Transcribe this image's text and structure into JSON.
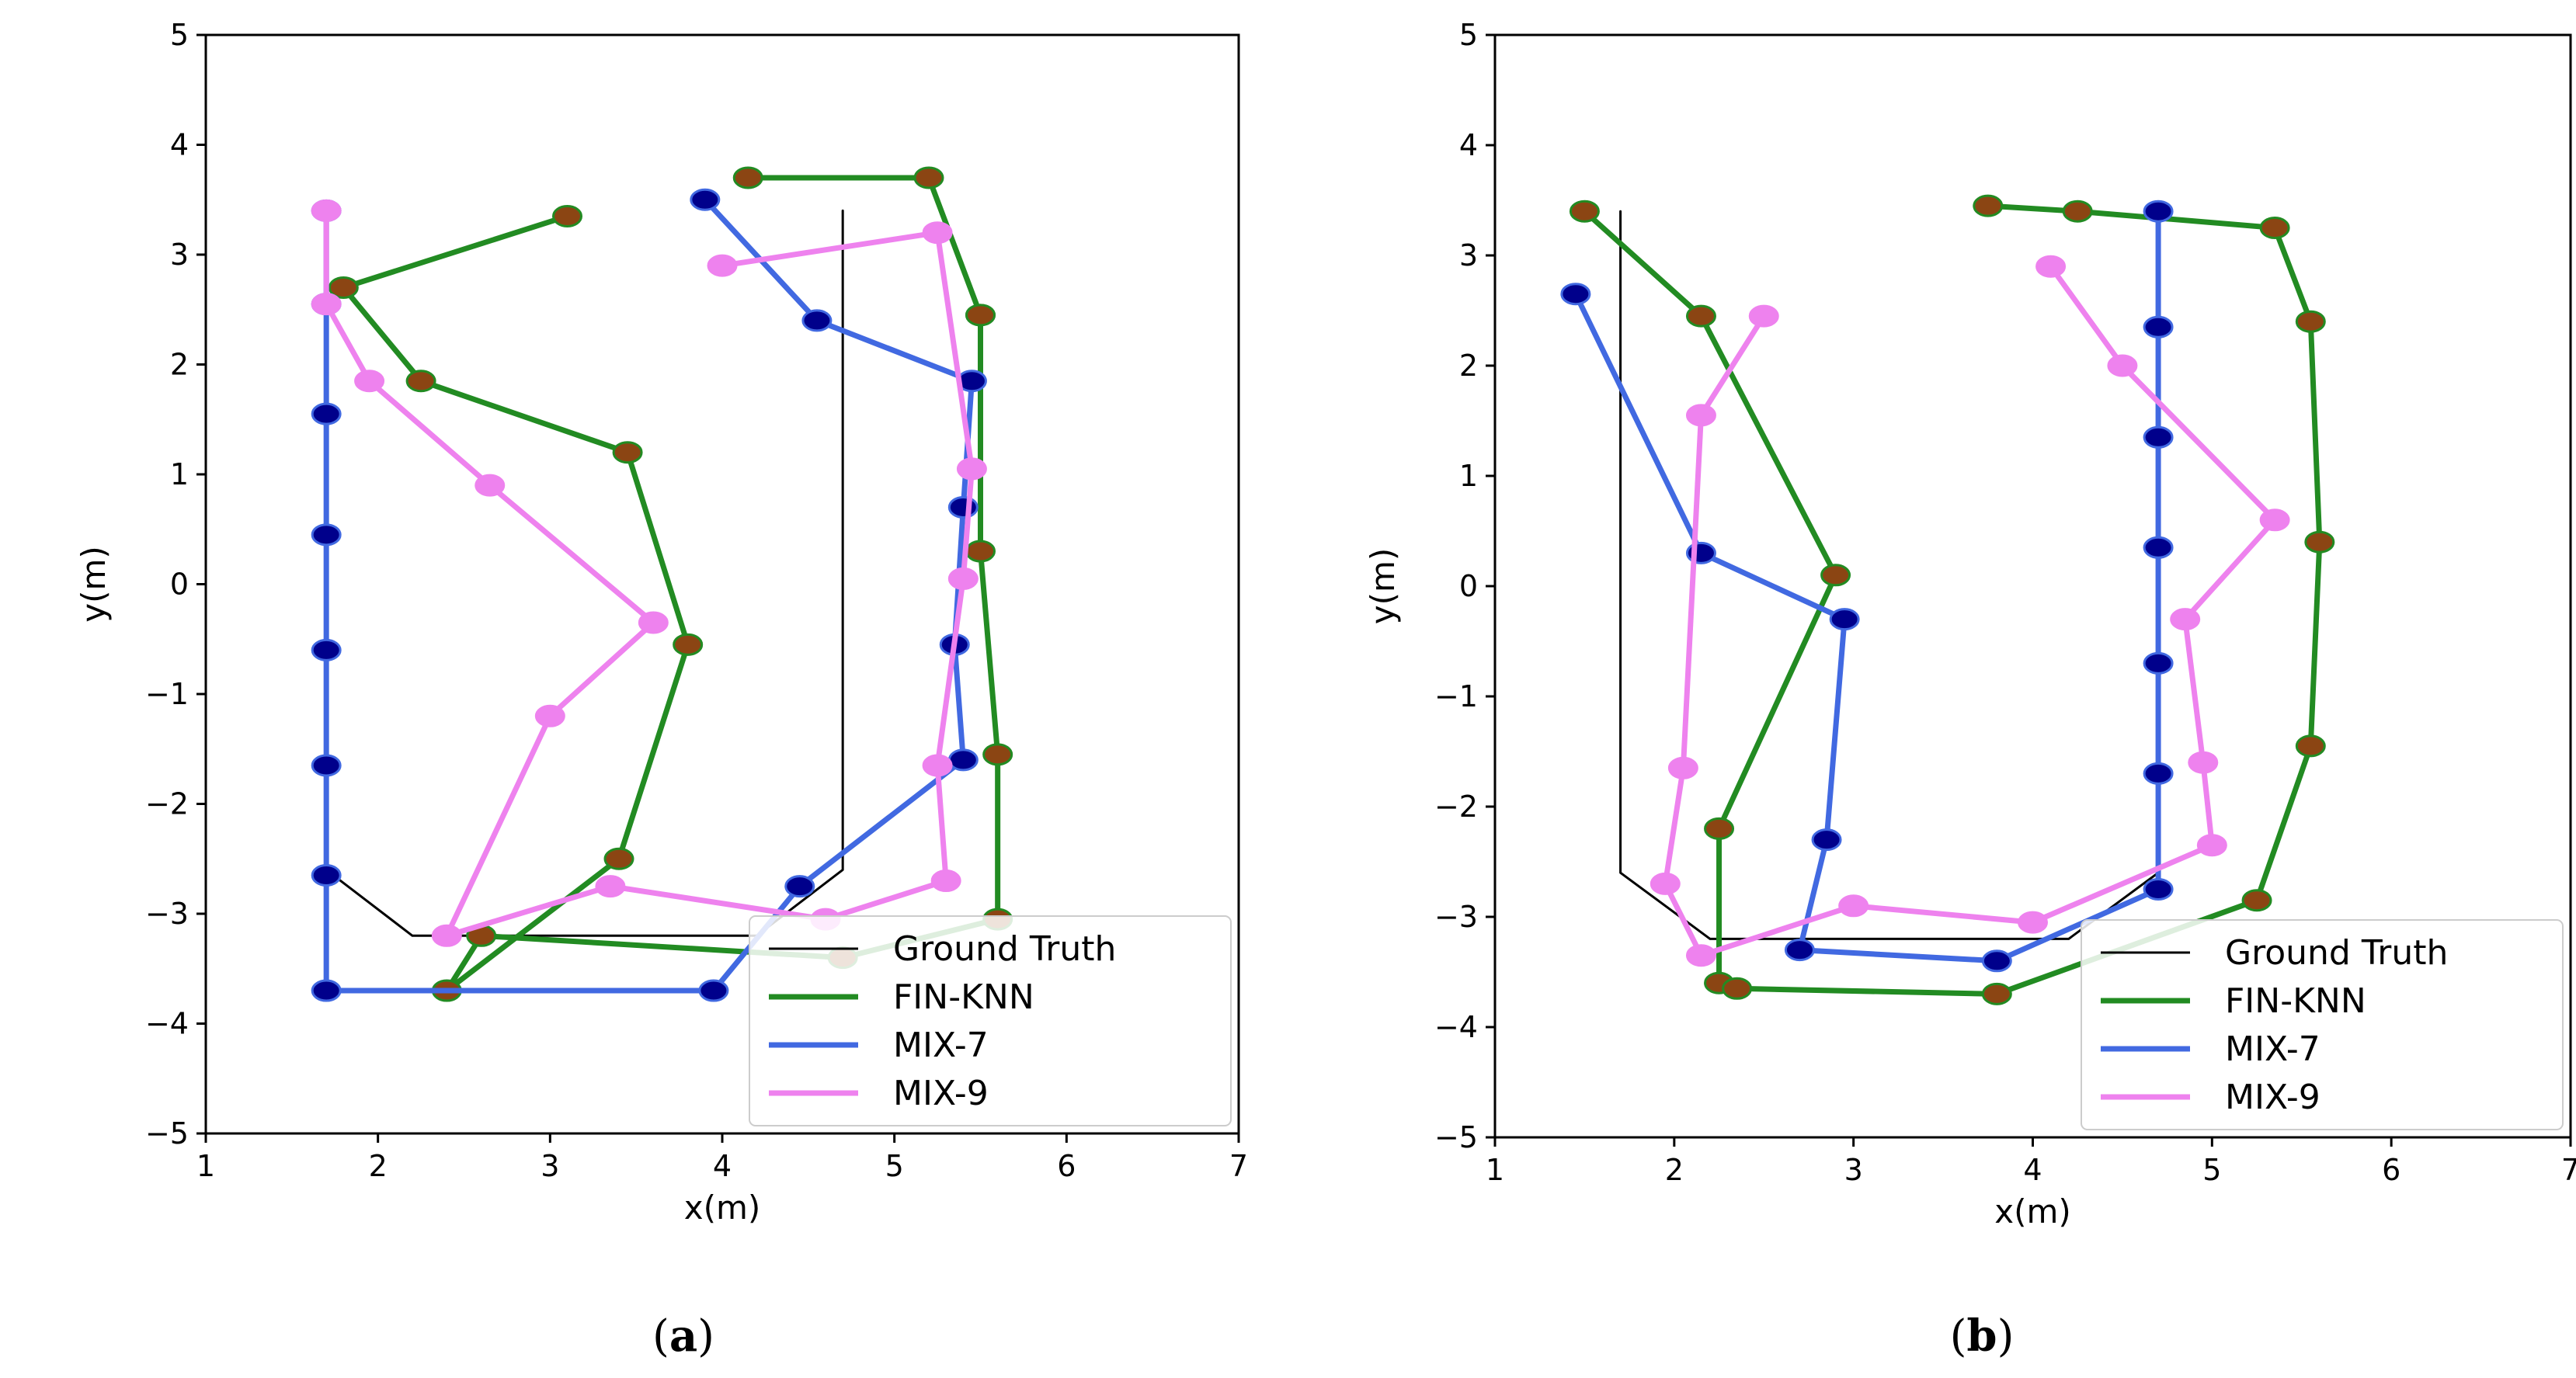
{
  "chart_data": [
    {
      "type": "line",
      "caption_open": "(",
      "caption_letter": "a",
      "caption_close": ")",
      "xlabel": "x(m)",
      "ylabel": "y(m)",
      "xlim": [
        1,
        7
      ],
      "ylim": [
        -5,
        5
      ],
      "xticks": [
        1,
        2,
        3,
        4,
        5,
        6,
        7
      ],
      "yticks": [
        -5,
        -4,
        -3,
        -2,
        -1,
        0,
        1,
        2,
        3,
        4,
        5
      ],
      "xtick_labels": [
        "1",
        "2",
        "3",
        "4",
        "5",
        "6",
        "7"
      ],
      "ytick_labels": [
        "−5",
        "−4",
        "−3",
        "−2",
        "−1",
        "0",
        "1",
        "2",
        "3",
        "4",
        "5"
      ],
      "legend_position": "lower right",
      "series": [
        {
          "name": "Ground Truth",
          "color": "#000000",
          "markers": false,
          "x": [
            1.7,
            1.7,
            2.2,
            4.2,
            4.7,
            4.7
          ],
          "y": [
            3.4,
            -2.6,
            -3.2,
            -3.2,
            -2.6,
            3.4
          ]
        },
        {
          "name": "FIN-KNN",
          "color": "#228B22",
          "markers": true,
          "marker_color": "#8B4513",
          "x": [
            3.1,
            1.8,
            2.25,
            3.45,
            3.8,
            3.4,
            2.4,
            2.6,
            4.7,
            5.6,
            5.6,
            5.5,
            5.5,
            5.5,
            5.2,
            4.15
          ],
          "y": [
            3.35,
            2.7,
            1.85,
            1.2,
            -0.55,
            -2.5,
            -3.7,
            -3.2,
            -3.4,
            -3.05,
            -1.55,
            0.3,
            2.45,
            2.45,
            3.7,
            3.7
          ]
        },
        {
          "name": "MIX-7",
          "color": "#4169E1",
          "markers": true,
          "marker_color": "#00008B",
          "x": [
            1.7,
            1.7,
            1.7,
            1.7,
            1.7,
            1.7,
            1.7,
            1.7,
            3.95,
            4.45,
            5.4,
            5.35,
            5.4,
            5.45,
            4.55,
            3.9
          ],
          "y": [
            3.4,
            2.55,
            1.55,
            0.45,
            -0.6,
            -1.65,
            -2.65,
            -3.7,
            -3.7,
            -2.75,
            -1.6,
            -0.55,
            0.7,
            1.85,
            2.4,
            3.5
          ]
        },
        {
          "name": "MIX-9",
          "color": "#EE82EE",
          "markers": true,
          "marker_color": "#EE82EE",
          "x": [
            1.7,
            1.7,
            1.95,
            2.65,
            3.6,
            3.0,
            2.4,
            3.35,
            4.6,
            5.3,
            5.25,
            5.4,
            5.45,
            5.25,
            4.0
          ],
          "y": [
            3.4,
            2.55,
            1.85,
            0.9,
            -0.35,
            -1.2,
            -3.2,
            -2.75,
            -3.05,
            -2.7,
            -1.65,
            0.05,
            1.05,
            3.2,
            2.9
          ]
        }
      ]
    },
    {
      "type": "line",
      "caption_open": "(",
      "caption_letter": "b",
      "caption_close": ")",
      "xlabel": "x(m)",
      "ylabel": "y(m)",
      "xlim": [
        1,
        7
      ],
      "ylim": [
        -5,
        5
      ],
      "xticks": [
        1,
        2,
        3,
        4,
        5,
        6,
        7
      ],
      "yticks": [
        -5,
        -4,
        -3,
        -2,
        -1,
        0,
        1,
        2,
        3,
        4,
        5
      ],
      "xtick_labels": [
        "1",
        "2",
        "3",
        "4",
        "5",
        "6",
        "7"
      ],
      "ytick_labels": [
        "−5",
        "−4",
        "−3",
        "−2",
        "−1",
        "0",
        "1",
        "2",
        "3",
        "4",
        "5"
      ],
      "legend_position": "lower right",
      "series": [
        {
          "name": "Ground Truth",
          "color": "#000000",
          "markers": false,
          "x": [
            1.7,
            1.7,
            2.2,
            4.2,
            4.7,
            4.7
          ],
          "y": [
            3.4,
            -2.6,
            -3.2,
            -3.2,
            -2.6,
            3.4
          ]
        },
        {
          "name": "FIN-KNN",
          "color": "#228B22",
          "markers": true,
          "marker_color": "#8B4513",
          "x": [
            1.5,
            2.15,
            2.9,
            2.25,
            2.25,
            2.35,
            3.8,
            5.25,
            5.55,
            5.6,
            5.55,
            5.35,
            4.25,
            3.75
          ],
          "y": [
            3.4,
            2.45,
            0.1,
            -2.2,
            -3.6,
            -3.65,
            -3.7,
            -2.85,
            -1.45,
            0.4,
            2.4,
            3.25,
            3.4,
            3.45
          ]
        },
        {
          "name": "MIX-7",
          "color": "#4169E1",
          "markers": true,
          "marker_color": "#00008B",
          "x": [
            1.45,
            2.15,
            2.95,
            2.85,
            2.7,
            3.8,
            4.7,
            4.7,
            4.7,
            4.7,
            4.7,
            4.7,
            4.7
          ],
          "y": [
            2.65,
            0.3,
            -0.3,
            -2.3,
            -3.3,
            -3.4,
            -2.75,
            -1.7,
            -0.7,
            0.35,
            1.35,
            2.35,
            3.4
          ]
        },
        {
          "name": "MIX-9",
          "color": "#EE82EE",
          "markers": true,
          "marker_color": "#EE82EE",
          "x": [
            2.5,
            2.15,
            2.05,
            1.95,
            2.15,
            3.0,
            4.0,
            5.0,
            4.95,
            4.85,
            5.35,
            4.5,
            4.1
          ],
          "y": [
            2.45,
            1.55,
            -1.65,
            -2.7,
            -3.35,
            -2.9,
            -3.05,
            -2.35,
            -1.6,
            -0.3,
            0.6,
            2.0,
            2.9
          ]
        }
      ]
    }
  ]
}
